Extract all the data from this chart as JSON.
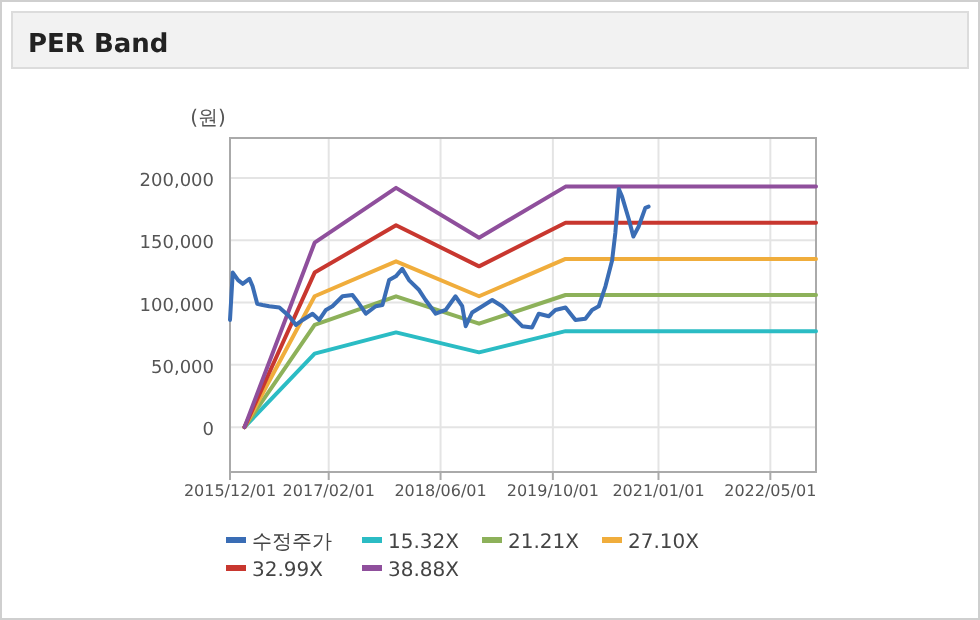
{
  "chart_data": {
    "type": "line",
    "title": "PER Band",
    "ylabel": "(원)",
    "xlim": [
      "2015-12-01",
      "2022-11-15"
    ],
    "xticks": [
      {
        "value": "2015-12-01",
        "label": "2015/12/01"
      },
      {
        "value": "2017-02-01",
        "label": "2017/02/01"
      },
      {
        "value": "2018-06-01",
        "label": "2018/06/01"
      },
      {
        "value": "2019-10-01",
        "label": "2019/10/01"
      },
      {
        "value": "2021-01-01",
        "label": "2021/01/01"
      },
      {
        "value": "2022-05-01",
        "label": "2022/05/01"
      }
    ],
    "ylim": [
      -36000,
      232000
    ],
    "yticks": [
      {
        "value": 0,
        "label": "0"
      },
      {
        "value": 50000,
        "label": "50,000"
      },
      {
        "value": 100000,
        "label": "100,000"
      },
      {
        "value": 150000,
        "label": "150,000"
      },
      {
        "value": 200000,
        "label": "200,000"
      }
    ],
    "grid": true,
    "legend": "bottom",
    "marker": "none",
    "line_style": "solid",
    "series": [
      {
        "name": "수정주가",
        "color": "#3a6db5",
        "x": [
          "2015-12-01",
          "2015-12-13",
          "2016-01-05",
          "2016-01-25",
          "2016-02-23",
          "2016-03-08",
          "2016-03-28",
          "2016-04-20",
          "2016-05-19",
          "2016-07-02",
          "2016-08-14",
          "2016-09-12",
          "2016-10-11",
          "2016-11-23",
          "2016-12-22",
          "2017-01-20",
          "2017-02-17",
          "2017-04-02",
          "2017-05-15",
          "2017-06-13",
          "2017-07-12",
          "2017-08-24",
          "2017-09-22",
          "2017-10-21",
          "2017-11-19",
          "2017-12-17",
          "2018-01-15",
          "2018-02-28",
          "2018-03-28",
          "2018-05-11",
          "2018-06-23",
          "2018-08-05",
          "2018-09-03",
          "2018-09-18",
          "2018-10-16",
          "2018-11-29",
          "2019-01-11",
          "2019-02-23",
          "2019-04-08",
          "2019-05-21",
          "2019-07-03",
          "2019-08-01",
          "2019-09-13",
          "2019-10-12",
          "2019-11-25",
          "2020-01-07",
          "2020-02-19",
          "2020-03-19",
          "2020-04-17",
          "2020-05-16",
          "2020-06-14",
          "2020-06-28",
          "2020-07-13",
          "2020-07-27",
          "2020-08-25",
          "2020-09-14",
          "2020-10-07",
          "2020-11-05",
          "2020-11-19"
        ],
        "values": [
          86000,
          124000,
          118000,
          115000,
          119000,
          113000,
          99000,
          98000,
          97000,
          96000,
          89000,
          82000,
          86000,
          91000,
          86000,
          94000,
          97000,
          105000,
          106000,
          99000,
          91000,
          97000,
          98000,
          118000,
          121000,
          127000,
          118000,
          110000,
          102000,
          91000,
          94000,
          105000,
          97000,
          81000,
          92000,
          97000,
          102000,
          97000,
          89000,
          81000,
          80000,
          91000,
          89000,
          94000,
          96000,
          86000,
          87000,
          94000,
          97000,
          113000,
          134000,
          156000,
          191000,
          185000,
          167000,
          153000,
          161000,
          176000,
          177000
        ]
      },
      {
        "name": "15.32X",
        "color": "#2bbcc4",
        "x": [
          "2016-02-02",
          "2016-12-02",
          "2017-11-20",
          "2018-11-15",
          "2019-11-25",
          "2022-11-15"
        ],
        "values": [
          0,
          59000,
          76000,
          60000,
          77000,
          77000
        ]
      },
      {
        "name": "21.21X",
        "color": "#8db15a",
        "x": [
          "2016-02-02",
          "2016-12-02",
          "2017-11-20",
          "2018-11-15",
          "2019-11-25",
          "2022-11-15"
        ],
        "values": [
          0,
          82000,
          105000,
          83000,
          106000,
          106000
        ]
      },
      {
        "name": "27.10X",
        "color": "#f0ad3c",
        "x": [
          "2016-02-02",
          "2016-12-02",
          "2017-11-20",
          "2018-11-15",
          "2019-11-25",
          "2022-11-15"
        ],
        "values": [
          0,
          105000,
          133000,
          105000,
          135000,
          135000
        ]
      },
      {
        "name": "32.99X",
        "color": "#c8372f",
        "x": [
          "2016-02-02",
          "2016-12-02",
          "2017-11-20",
          "2018-11-15",
          "2019-11-25",
          "2022-11-15"
        ],
        "values": [
          0,
          124000,
          162000,
          129000,
          164000,
          164000
        ]
      },
      {
        "name": "38.88X",
        "color": "#8f4f9c",
        "x": [
          "2016-02-02",
          "2016-12-02",
          "2017-11-20",
          "2018-11-15",
          "2019-11-25",
          "2022-11-15"
        ],
        "values": [
          0,
          148000,
          192000,
          152000,
          193000,
          193000
        ]
      }
    ]
  }
}
